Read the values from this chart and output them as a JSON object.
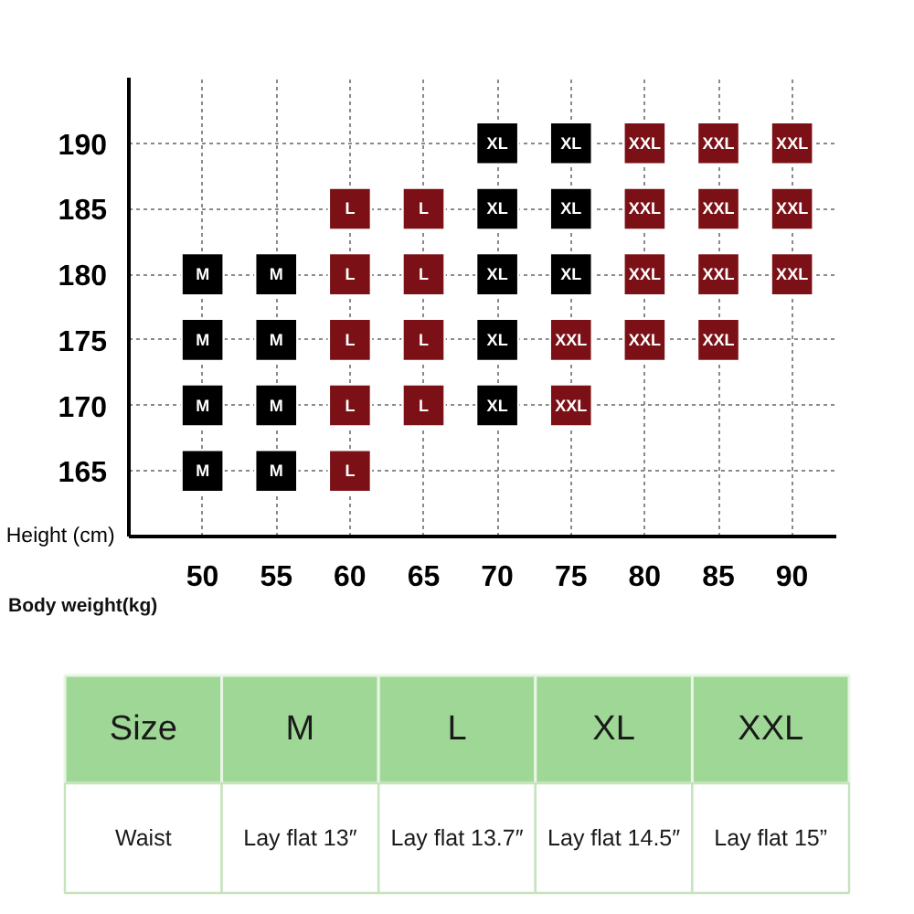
{
  "chart_data": [
    {
      "type": "scatter",
      "xlabel": "Body weight(kg)",
      "ylabel": "Height (cm)",
      "xlim": [
        45,
        93
      ],
      "ylim": [
        160,
        195
      ],
      "xticks": [
        50,
        55,
        60,
        65,
        70,
        75,
        80,
        85,
        90
      ],
      "yticks": [
        165,
        170,
        175,
        180,
        185,
        190
      ],
      "grid": true,
      "marker": "square",
      "series": [
        {
          "name": "M",
          "color": "#000000",
          "x": [
            50,
            55,
            50,
            55,
            50,
            55,
            50,
            55
          ],
          "values": [
            180,
            180,
            175,
            175,
            170,
            170,
            165,
            165
          ]
        },
        {
          "name": "L",
          "color": "#7b1116",
          "x": [
            60,
            65,
            60,
            65,
            60,
            65,
            60,
            65,
            60
          ],
          "values": [
            185,
            185,
            180,
            180,
            175,
            175,
            170,
            170,
            165
          ]
        },
        {
          "name": "XL",
          "color": "#000000",
          "x": [
            70,
            75,
            70,
            75,
            70,
            75,
            70,
            70
          ],
          "values": [
            190,
            190,
            185,
            185,
            180,
            180,
            175,
            170
          ]
        },
        {
          "name": "XXL",
          "color": "#7b1116",
          "x": [
            80,
            85,
            90,
            80,
            85,
            90,
            80,
            85,
            90,
            75,
            80,
            85,
            75
          ],
          "values": [
            190,
            190,
            190,
            185,
            185,
            185,
            180,
            180,
            180,
            175,
            175,
            175,
            170
          ]
        }
      ]
    },
    {
      "type": "other",
      "xlabel": "Size",
      "ylabel": "Waist",
      "color": "#9fd896",
      "categories": [
        "M",
        "L",
        "XL",
        "XXL"
      ],
      "value_labels": [
        "Lay flat 13″",
        "Lay flat 13.7″",
        "Lay flat 14.5″",
        "Lay flat 15”"
      ]
    }
  ]
}
